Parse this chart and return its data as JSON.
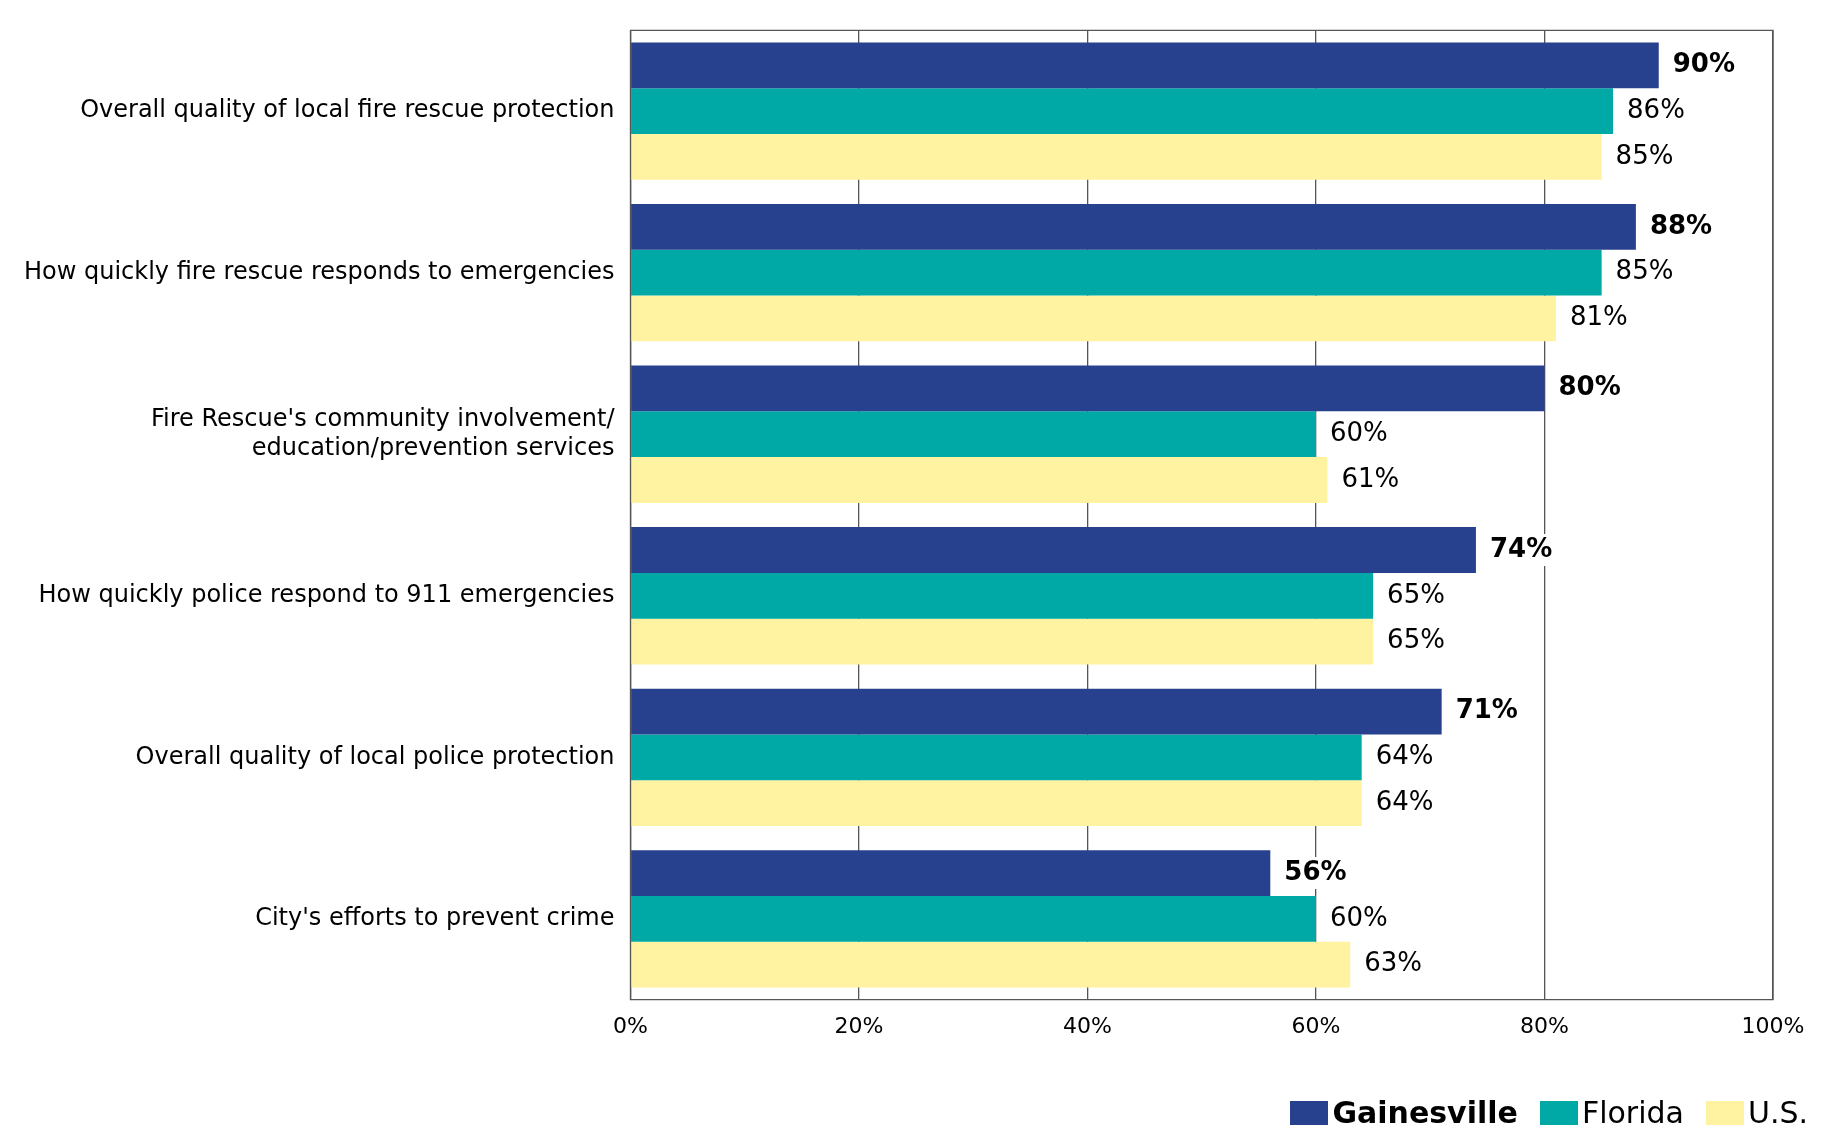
{
  "chart_data": {
    "type": "bar",
    "orientation": "horizontal",
    "categories": [
      "Overall quality of local fire rescue protection",
      "How quickly fire rescue responds to emergencies",
      "Fire Rescue's community involvement/ education/prevention services",
      "How quickly police respond to 911 emergencies",
      "Overall quality of local police protection",
      "City's efforts to prevent crime"
    ],
    "series": [
      {
        "name": "Gainesville",
        "color": "#27418f",
        "values": [
          90,
          88,
          80,
          74,
          71,
          56
        ],
        "value_labels": [
          "90%",
          "88%",
          "80%",
          "74%",
          "71%",
          "56%"
        ]
      },
      {
        "name": "Florida",
        "color": "#00a9a6",
        "values": [
          86,
          85,
          60,
          65,
          64,
          60
        ],
        "value_labels": [
          "86%",
          "85%",
          "60%",
          "65%",
          "64%",
          "60%"
        ]
      },
      {
        "name": "U.S.",
        "color": "#fff2a0",
        "values": [
          85,
          81,
          61,
          65,
          64,
          63
        ],
        "value_labels": [
          "85%",
          "81%",
          "61%",
          "65%",
          "64%",
          "63%"
        ]
      }
    ],
    "xlim": [
      0,
      100
    ],
    "xticks": [
      {
        "value": 0,
        "label": "0%"
      },
      {
        "value": 20,
        "label": "20%"
      },
      {
        "value": 40,
        "label": "40%"
      },
      {
        "value": 60,
        "label": "60%"
      },
      {
        "value": 80,
        "label": "80%"
      },
      {
        "value": 100,
        "label": "100%"
      }
    ],
    "grid": "x",
    "legend": "bottom right"
  }
}
